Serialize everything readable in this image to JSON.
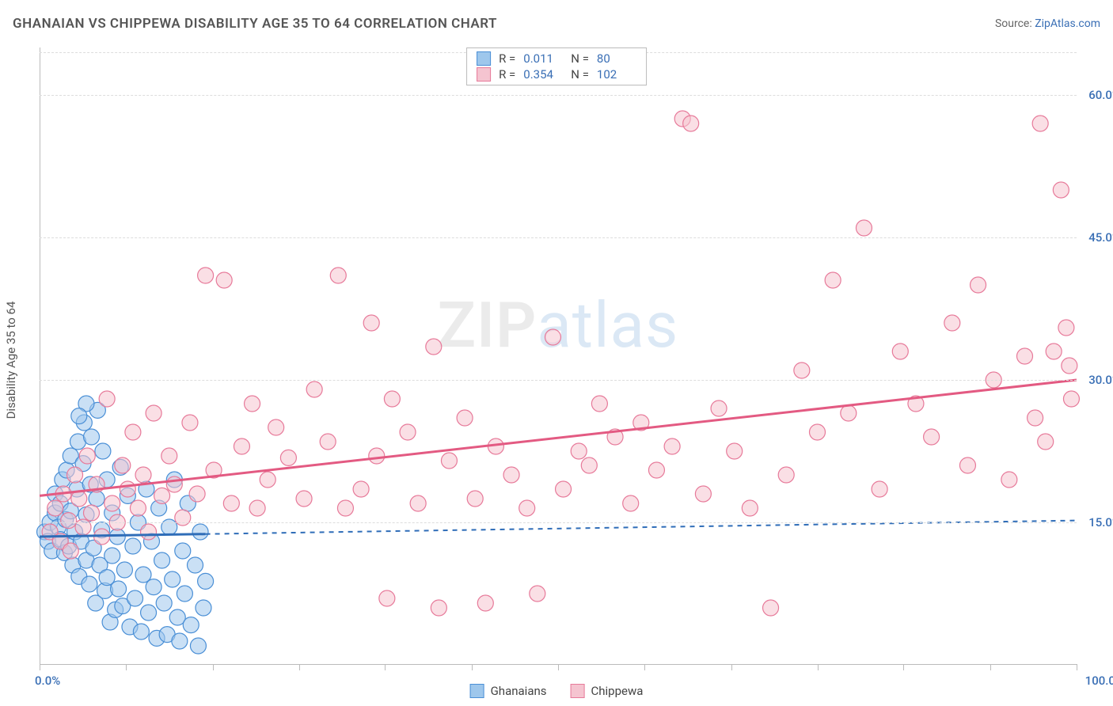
{
  "title": "GHANAIAN VS CHIPPEWA DISABILITY AGE 35 TO 64 CORRELATION CHART",
  "source_prefix": "Source: ",
  "source_link": "ZipAtlas.com",
  "y_axis_title": "Disability Age 35 to 64",
  "watermark": {
    "part1": "ZIP",
    "part2": "atlas"
  },
  "chart": {
    "type": "scatter",
    "xlim": [
      0,
      100
    ],
    "ylim": [
      0,
      65
    ],
    "x_labels": {
      "min": "0.0%",
      "max": "100.0%"
    },
    "y_ticks": [
      15.0,
      30.0,
      45.0,
      60.0
    ],
    "y_tick_labels": [
      "15.0%",
      "30.0%",
      "45.0%",
      "60.0%"
    ],
    "x_tick_positions": [
      0,
      8.3,
      16.7,
      25,
      33.3,
      41.7,
      50,
      58.3,
      66.7,
      75,
      83.3,
      91.7,
      100
    ],
    "background_color": "#ffffff",
    "grid_color": "#dddddd",
    "marker_radius": 10,
    "marker_opacity": 0.55,
    "series": [
      {
        "name": "Ghanaians",
        "fill": "#9ec7ec",
        "stroke": "#4a8fd6",
        "R": "0.011",
        "N": "80",
        "trend": {
          "color": "#2f6db8",
          "width": 3,
          "y_start": 13.5,
          "y_end": 15.2,
          "x_solid_end": 16,
          "dash_after": true
        },
        "points": [
          [
            0.5,
            14
          ],
          [
            0.8,
            13
          ],
          [
            1,
            15
          ],
          [
            1.2,
            12
          ],
          [
            1.5,
            16
          ],
          [
            1.5,
            18
          ],
          [
            1.8,
            14.5
          ],
          [
            2,
            13.2
          ],
          [
            2,
            17
          ],
          [
            2.2,
            19.5
          ],
          [
            2.4,
            11.8
          ],
          [
            2.5,
            15.3
          ],
          [
            2.6,
            20.5
          ],
          [
            2.8,
            12.5
          ],
          [
            3,
            16.2
          ],
          [
            3,
            22
          ],
          [
            3.2,
            10.5
          ],
          [
            3.4,
            14
          ],
          [
            3.6,
            18.5
          ],
          [
            3.7,
            23.5
          ],
          [
            3.8,
            9.3
          ],
          [
            4,
            13
          ],
          [
            4.2,
            21.2
          ],
          [
            4.3,
            25.5
          ],
          [
            4.5,
            11
          ],
          [
            4.5,
            15.8
          ],
          [
            4.8,
            8.5
          ],
          [
            4.9,
            19
          ],
          [
            5,
            24
          ],
          [
            5.2,
            12.3
          ],
          [
            5.4,
            6.5
          ],
          [
            5.5,
            17.5
          ],
          [
            5.6,
            26.8
          ],
          [
            5.8,
            10.5
          ],
          [
            6,
            14.2
          ],
          [
            6.1,
            22.5
          ],
          [
            6.3,
            7.8
          ],
          [
            6.5,
            9.2
          ],
          [
            6.5,
            19.5
          ],
          [
            6.8,
            4.5
          ],
          [
            7,
            11.5
          ],
          [
            7,
            16
          ],
          [
            7.3,
            5.8
          ],
          [
            7.5,
            13.5
          ],
          [
            7.6,
            8
          ],
          [
            7.8,
            20.8
          ],
          [
            8,
            6.2
          ],
          [
            8.2,
            10
          ],
          [
            8.5,
            17.8
          ],
          [
            8.7,
            4
          ],
          [
            9,
            12.5
          ],
          [
            9.2,
            7
          ],
          [
            9.5,
            15
          ],
          [
            9.8,
            3.5
          ],
          [
            10,
            9.5
          ],
          [
            10.3,
            18.5
          ],
          [
            10.5,
            5.5
          ],
          [
            10.8,
            13
          ],
          [
            11,
            8.2
          ],
          [
            11.3,
            2.8
          ],
          [
            11.5,
            16.5
          ],
          [
            11.8,
            11
          ],
          [
            12,
            6.5
          ],
          [
            12.3,
            3.2
          ],
          [
            12.5,
            14.5
          ],
          [
            12.8,
            9
          ],
          [
            13,
            19.5
          ],
          [
            13.3,
            5
          ],
          [
            13.5,
            2.5
          ],
          [
            13.8,
            12
          ],
          [
            14,
            7.5
          ],
          [
            14.3,
            17
          ],
          [
            14.6,
            4.2
          ],
          [
            15,
            10.5
          ],
          [
            15.3,
            2
          ],
          [
            15.5,
            14
          ],
          [
            15.8,
            6
          ],
          [
            16,
            8.8
          ],
          [
            4.5,
            27.5
          ],
          [
            3.8,
            26.2
          ]
        ]
      },
      {
        "name": "Chippewa",
        "fill": "#f5c4d0",
        "stroke": "#e77a9a",
        "R": "0.354",
        "N": "102",
        "trend": {
          "color": "#e35a82",
          "width": 3,
          "y_start": 17.8,
          "y_end": 30.0,
          "x_solid_end": 100,
          "dash_after": false
        },
        "points": [
          [
            1,
            14
          ],
          [
            1.5,
            16.5
          ],
          [
            2,
            13
          ],
          [
            2.3,
            18
          ],
          [
            2.8,
            15.2
          ],
          [
            3,
            12
          ],
          [
            3.4,
            20
          ],
          [
            3.8,
            17.5
          ],
          [
            4.2,
            14.5
          ],
          [
            4.6,
            22
          ],
          [
            5,
            16
          ],
          [
            5.5,
            19
          ],
          [
            6,
            13.5
          ],
          [
            6.5,
            28
          ],
          [
            7,
            17
          ],
          [
            7.5,
            15
          ],
          [
            8,
            21
          ],
          [
            8.5,
            18.5
          ],
          [
            9,
            24.5
          ],
          [
            9.5,
            16.5
          ],
          [
            10,
            20
          ],
          [
            10.5,
            14
          ],
          [
            11,
            26.5
          ],
          [
            11.8,
            17.8
          ],
          [
            12.5,
            22
          ],
          [
            13,
            19
          ],
          [
            13.8,
            15.5
          ],
          [
            14.5,
            25.5
          ],
          [
            15.2,
            18
          ],
          [
            16,
            41
          ],
          [
            16.8,
            20.5
          ],
          [
            17.8,
            40.5
          ],
          [
            18.5,
            17
          ],
          [
            19.5,
            23
          ],
          [
            20.5,
            27.5
          ],
          [
            21,
            16.5
          ],
          [
            22,
            19.5
          ],
          [
            22.8,
            25
          ],
          [
            24,
            21.8
          ],
          [
            25.5,
            17.5
          ],
          [
            26.5,
            29
          ],
          [
            27.8,
            23.5
          ],
          [
            28.8,
            41
          ],
          [
            29.5,
            16.5
          ],
          [
            31,
            18.5
          ],
          [
            32,
            36
          ],
          [
            32.5,
            22
          ],
          [
            33.5,
            7
          ],
          [
            34,
            28
          ],
          [
            35.5,
            24.5
          ],
          [
            36.5,
            17
          ],
          [
            38,
            33.5
          ],
          [
            38.5,
            6
          ],
          [
            39.5,
            21.5
          ],
          [
            41,
            26
          ],
          [
            42,
            17.5
          ],
          [
            43,
            6.5
          ],
          [
            44,
            23
          ],
          [
            45.5,
            20
          ],
          [
            47,
            16.5
          ],
          [
            48,
            7.5
          ],
          [
            49.5,
            34.5
          ],
          [
            50.5,
            18.5
          ],
          [
            52,
            22.5
          ],
          [
            53,
            21
          ],
          [
            54,
            27.5
          ],
          [
            55.5,
            24
          ],
          [
            57,
            17
          ],
          [
            58,
            25.5
          ],
          [
            59.5,
            20.5
          ],
          [
            61,
            23
          ],
          [
            62,
            57.5
          ],
          [
            62.8,
            57
          ],
          [
            64,
            18
          ],
          [
            65.5,
            27
          ],
          [
            67,
            22.5
          ],
          [
            68.5,
            16.5
          ],
          [
            70.5,
            6
          ],
          [
            72,
            20
          ],
          [
            73.5,
            31
          ],
          [
            75,
            24.5
          ],
          [
            76.5,
            40.5
          ],
          [
            78,
            26.5
          ],
          [
            79.5,
            46
          ],
          [
            81,
            18.5
          ],
          [
            83,
            33
          ],
          [
            84.5,
            27.5
          ],
          [
            86,
            24
          ],
          [
            88,
            36
          ],
          [
            89.5,
            21
          ],
          [
            90.5,
            40
          ],
          [
            92,
            30
          ],
          [
            93.5,
            19.5
          ],
          [
            95,
            32.5
          ],
          [
            96,
            26
          ],
          [
            96.5,
            57
          ],
          [
            97,
            23.5
          ],
          [
            97.8,
            33
          ],
          [
            98.5,
            50
          ],
          [
            99,
            35.5
          ],
          [
            99.3,
            31.5
          ],
          [
            99.5,
            28
          ]
        ]
      }
    ]
  },
  "legend": {
    "stat_labels": {
      "R": "R =",
      "N": "N ="
    },
    "bottom_items": [
      "Ghanaians",
      "Chippewa"
    ]
  }
}
